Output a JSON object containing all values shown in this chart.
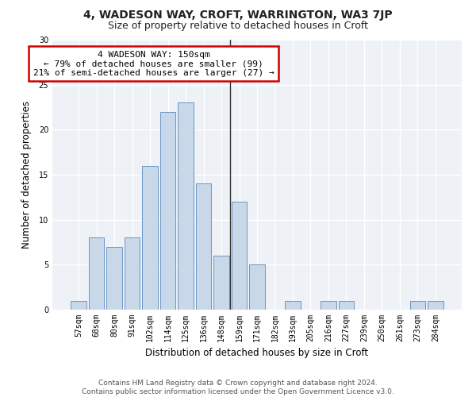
{
  "title": "4, WADESON WAY, CROFT, WARRINGTON, WA3 7JP",
  "subtitle": "Size of property relative to detached houses in Croft",
  "xlabel": "Distribution of detached houses by size in Croft",
  "ylabel": "Number of detached properties",
  "categories": [
    "57sqm",
    "68sqm",
    "80sqm",
    "91sqm",
    "102sqm",
    "114sqm",
    "125sqm",
    "136sqm",
    "148sqm",
    "159sqm",
    "171sqm",
    "182sqm",
    "193sqm",
    "205sqm",
    "216sqm",
    "227sqm",
    "239sqm",
    "250sqm",
    "261sqm",
    "273sqm",
    "284sqm"
  ],
  "values": [
    1,
    8,
    7,
    8,
    16,
    22,
    23,
    14,
    6,
    12,
    5,
    0,
    1,
    0,
    1,
    1,
    0,
    0,
    0,
    1,
    1
  ],
  "bar_color": "#c8d8e8",
  "bar_edge_color": "#5a8abf",
  "vline_x": 8.5,
  "vline_color": "#333333",
  "annotation_text": "4 WADESON WAY: 150sqm\n← 79% of detached houses are smaller (99)\n21% of semi-detached houses are larger (27) →",
  "annotation_box_color": "#ffffff",
  "annotation_box_edge_color": "#cc0000",
  "ylim": [
    0,
    30
  ],
  "yticks": [
    0,
    5,
    10,
    15,
    20,
    25,
    30
  ],
  "background_color": "#eef2f7",
  "footer_text": "Contains HM Land Registry data © Crown copyright and database right 2024.\nContains public sector information licensed under the Open Government Licence v3.0.",
  "title_fontsize": 10,
  "subtitle_fontsize": 9,
  "xlabel_fontsize": 8.5,
  "ylabel_fontsize": 8.5,
  "tick_fontsize": 7,
  "annotation_fontsize": 8,
  "footer_fontsize": 6.5
}
